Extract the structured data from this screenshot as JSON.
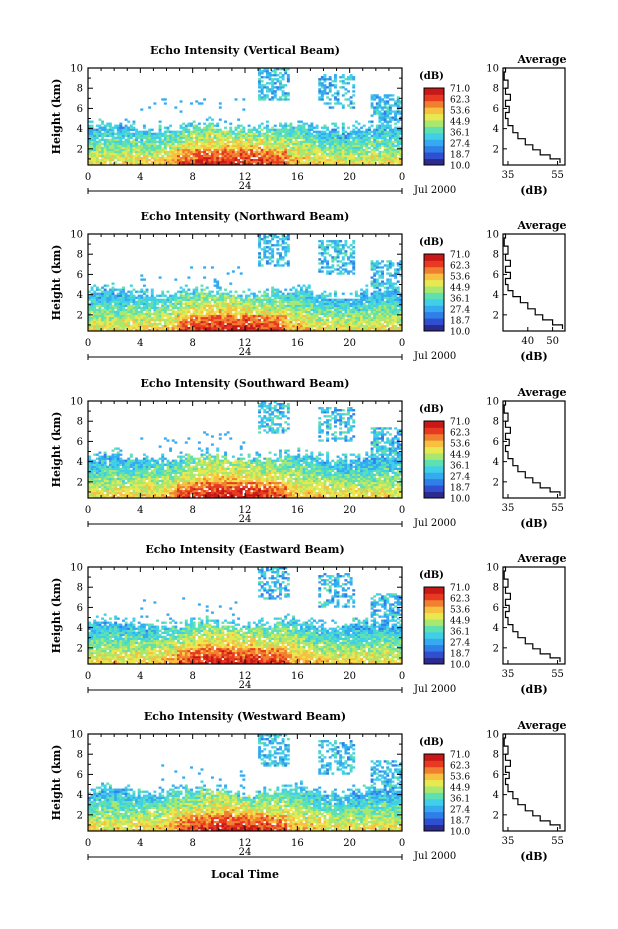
{
  "figure": {
    "xlabel": "Local Time",
    "date_label": "Jul 2000",
    "day_label": "24",
    "colorbar_unit": "(dB)",
    "colorbar_levels": [
      "71.0",
      "62.3",
      "53.6",
      "44.9",
      "36.1",
      "27.4",
      "18.7",
      "10.0"
    ],
    "colormap": [
      "#2b2b8f",
      "#2f4fd0",
      "#2f7fe8",
      "#35aaf0",
      "#3fd0e8",
      "#5fe0b0",
      "#a8e870",
      "#e8e850",
      "#f8c040",
      "#f08030",
      "#e83a20",
      "#c81818"
    ],
    "ylabel": "Height (km)",
    "avg_title": "Average",
    "avg_xlabel": "(dB)"
  },
  "chart_data": [
    {
      "type": "heatmap",
      "title": "Echo Intensity (Vertical Beam)",
      "xlim": [
        0,
        24
      ],
      "xticks": [
        "0",
        "4",
        "8",
        "12",
        "16",
        "20",
        "0"
      ],
      "ylim": [
        0.4,
        10
      ],
      "yticks": [
        "2",
        "4",
        "6",
        "8",
        "10"
      ],
      "base_top_km": 4.0,
      "strong_top_km": 2.0,
      "profile": {
        "xlim": [
          33,
          58
        ],
        "xticks": [
          "35",
          "55"
        ],
        "xtick_vals": [
          35,
          55
        ],
        "points": [
          [
            56,
            0.6
          ],
          [
            52,
            1.0
          ],
          [
            48,
            1.4
          ],
          [
            45,
            1.9
          ],
          [
            42,
            2.4
          ],
          [
            39,
            3.0
          ],
          [
            37,
            3.6
          ],
          [
            35,
            4.3
          ],
          [
            34,
            5.0
          ],
          [
            35.5,
            5.6
          ],
          [
            34,
            6.2
          ],
          [
            36,
            6.8
          ],
          [
            34,
            7.4
          ],
          [
            35,
            8.0
          ],
          [
            33.5,
            8.8
          ],
          [
            34,
            9.6
          ],
          [
            33.5,
            10
          ]
        ]
      }
    },
    {
      "type": "heatmap",
      "title": "Echo Intensity (Northward Beam)",
      "xlim": [
        0,
        24
      ],
      "xticks": [
        "0",
        "4",
        "8",
        "12",
        "16",
        "20",
        "0"
      ],
      "ylim": [
        0.4,
        10
      ],
      "yticks": [
        "2",
        "4",
        "6",
        "8",
        "10"
      ],
      "base_top_km": 4.0,
      "strong_top_km": 2.0,
      "profile": {
        "xlim": [
          30,
          55
        ],
        "xticks": [
          "40",
          "50"
        ],
        "xtick_vals": [
          40,
          50
        ],
        "points": [
          [
            54,
            0.6
          ],
          [
            50,
            1.0
          ],
          [
            46,
            1.5
          ],
          [
            43,
            2.0
          ],
          [
            40,
            2.6
          ],
          [
            37,
            3.2
          ],
          [
            34,
            3.8
          ],
          [
            32,
            4.4
          ],
          [
            31,
            5.0
          ],
          [
            33,
            5.6
          ],
          [
            31,
            6.2
          ],
          [
            33,
            6.8
          ],
          [
            31,
            7.4
          ],
          [
            32,
            8.0
          ],
          [
            30.5,
            8.8
          ],
          [
            31,
            9.6
          ],
          [
            30.5,
            10
          ]
        ]
      }
    },
    {
      "type": "heatmap",
      "title": "Echo Intensity (Southward Beam)",
      "xlim": [
        0,
        24
      ],
      "xticks": [
        "0",
        "4",
        "8",
        "12",
        "16",
        "20",
        "0"
      ],
      "ylim": [
        0.4,
        10
      ],
      "yticks": [
        "2",
        "4",
        "6",
        "8",
        "10"
      ],
      "base_top_km": 4.3,
      "strong_top_km": 2.0,
      "profile": {
        "xlim": [
          33,
          58
        ],
        "xticks": [
          "35",
          "55"
        ],
        "xtick_vals": [
          35,
          55
        ],
        "points": [
          [
            56,
            0.6
          ],
          [
            52,
            1.0
          ],
          [
            48,
            1.4
          ],
          [
            45,
            1.9
          ],
          [
            42,
            2.4
          ],
          [
            39,
            3.0
          ],
          [
            37,
            3.6
          ],
          [
            35,
            4.3
          ],
          [
            34,
            5.0
          ],
          [
            35.5,
            5.6
          ],
          [
            34,
            6.2
          ],
          [
            36,
            6.8
          ],
          [
            34,
            7.4
          ],
          [
            35,
            8.0
          ],
          [
            33.5,
            8.8
          ],
          [
            34,
            9.6
          ],
          [
            33.5,
            10
          ]
        ]
      }
    },
    {
      "type": "heatmap",
      "title": "Echo Intensity (Eastward Beam)",
      "xlim": [
        0,
        24
      ],
      "xticks": [
        "0",
        "4",
        "8",
        "12",
        "16",
        "20",
        "0"
      ],
      "ylim": [
        0.4,
        10
      ],
      "yticks": [
        "2",
        "4",
        "6",
        "8",
        "10"
      ],
      "base_top_km": 4.2,
      "strong_top_km": 2.0,
      "profile": {
        "xlim": [
          33,
          58
        ],
        "xticks": [
          "35",
          "55"
        ],
        "xtick_vals": [
          35,
          55
        ],
        "points": [
          [
            56,
            0.6
          ],
          [
            52,
            1.0
          ],
          [
            48,
            1.4
          ],
          [
            45,
            1.9
          ],
          [
            42,
            2.4
          ],
          [
            39,
            3.0
          ],
          [
            37,
            3.6
          ],
          [
            35,
            4.3
          ],
          [
            34,
            5.0
          ],
          [
            35.5,
            5.6
          ],
          [
            34,
            6.2
          ],
          [
            36,
            6.8
          ],
          [
            34,
            7.4
          ],
          [
            35,
            8.0
          ],
          [
            33.5,
            8.8
          ],
          [
            34,
            9.6
          ],
          [
            33.5,
            10
          ]
        ]
      }
    },
    {
      "type": "heatmap",
      "title": "Echo Intensity (Westward Beam)",
      "xlim": [
        0,
        24
      ],
      "xticks": [
        "0",
        "4",
        "8",
        "12",
        "16",
        "20",
        "0"
      ],
      "ylim": [
        0.4,
        10
      ],
      "yticks": [
        "2",
        "4",
        "6",
        "8",
        "10"
      ],
      "base_top_km": 4.2,
      "strong_top_km": 2.0,
      "profile": {
        "xlim": [
          33,
          58
        ],
        "xticks": [
          "35",
          "55"
        ],
        "xtick_vals": [
          35,
          55
        ],
        "points": [
          [
            56,
            0.6
          ],
          [
            52,
            1.0
          ],
          [
            48,
            1.4
          ],
          [
            45,
            1.9
          ],
          [
            42,
            2.4
          ],
          [
            39,
            3.0
          ],
          [
            37,
            3.6
          ],
          [
            35,
            4.3
          ],
          [
            34,
            5.0
          ],
          [
            35.5,
            5.6
          ],
          [
            34,
            6.2
          ],
          [
            36,
            6.8
          ],
          [
            34,
            7.4
          ],
          [
            35,
            8.0
          ],
          [
            33.5,
            8.8
          ],
          [
            34,
            9.6
          ],
          [
            33.5,
            10
          ]
        ]
      }
    }
  ]
}
